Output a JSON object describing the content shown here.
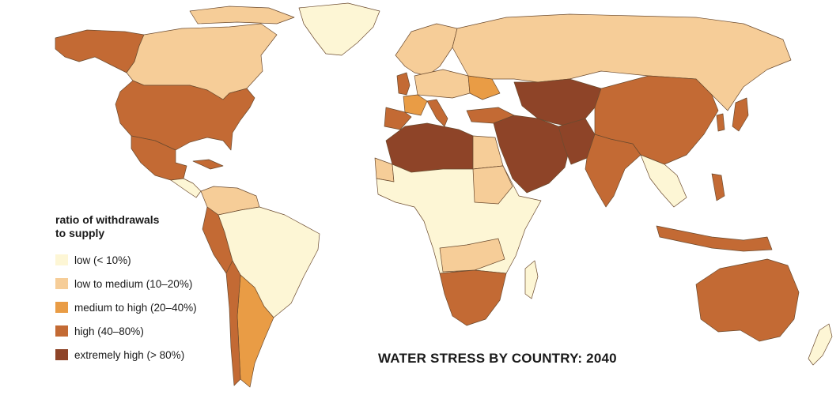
{
  "title": "WATER STRESS BY COUNTRY: 2040",
  "legend": {
    "title_line1": "ratio of withdrawals",
    "title_line2": "to supply",
    "items": [
      {
        "label": "low (< 10%)",
        "color": "#fdf6d5"
      },
      {
        "label": "low to medium (10–20%)",
        "color": "#f6cd98"
      },
      {
        "label": "medium to high (20–40%)",
        "color": "#e99c45"
      },
      {
        "label": "high (40–80%)",
        "color": "#c36a34"
      },
      {
        "label": "extremely high (> 80%)",
        "color": "#8e4428"
      }
    ]
  }
}
